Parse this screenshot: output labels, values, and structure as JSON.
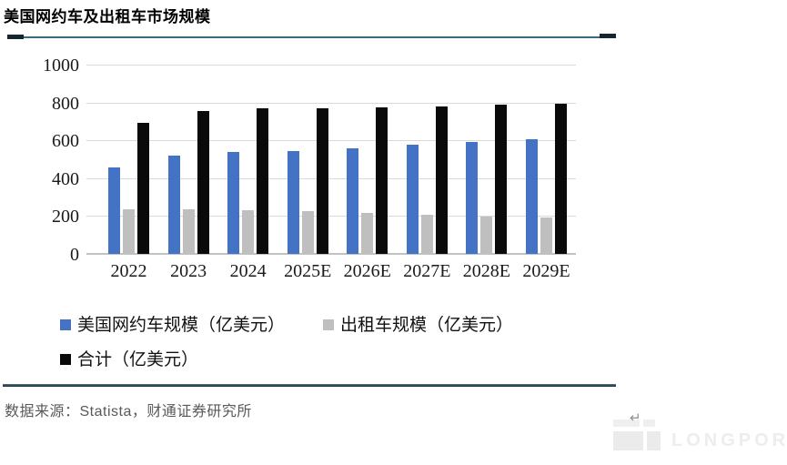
{
  "page_title": "美国网约车及出租车市场规模",
  "chart_data": {
    "type": "bar",
    "title": "美国网约车及出租车市场规模",
    "categories": [
      "2022",
      "2023",
      "2024",
      "2025E",
      "2026E",
      "2027E",
      "2028E",
      "2029E"
    ],
    "series": [
      {
        "name": "美国网约车规模（亿美元）",
        "color": "#4472C4",
        "values": [
          455,
          520,
          540,
          545,
          560,
          575,
          590,
          605
        ]
      },
      {
        "name": "出租车规模（亿美元）",
        "color": "#BFBFBF",
        "values": [
          235,
          235,
          230,
          225,
          215,
          205,
          198,
          190
        ]
      },
      {
        "name": "合计（亿美元）",
        "color": "#0A0A0A",
        "values": [
          690,
          755,
          770,
          770,
          775,
          780,
          788,
          795
        ]
      }
    ],
    "ylim": [
      0,
      1000
    ],
    "yticks": [
      0,
      200,
      400,
      600,
      800,
      1000
    ],
    "xlabel": "",
    "ylabel": "",
    "grid": true,
    "legend_position": "bottom"
  },
  "footer": {
    "source": "数据来源：Statista，财通证券研究所"
  },
  "watermark": {
    "brand": "LONGPORT",
    "arrow": "↵"
  },
  "colors": {
    "series_blue": "#4472C4",
    "series_gray": "#BFBFBF",
    "series_black": "#0A0A0A",
    "gridline": "#D9D9D9",
    "panel_border": "#16262E",
    "source_text": "#595959"
  }
}
